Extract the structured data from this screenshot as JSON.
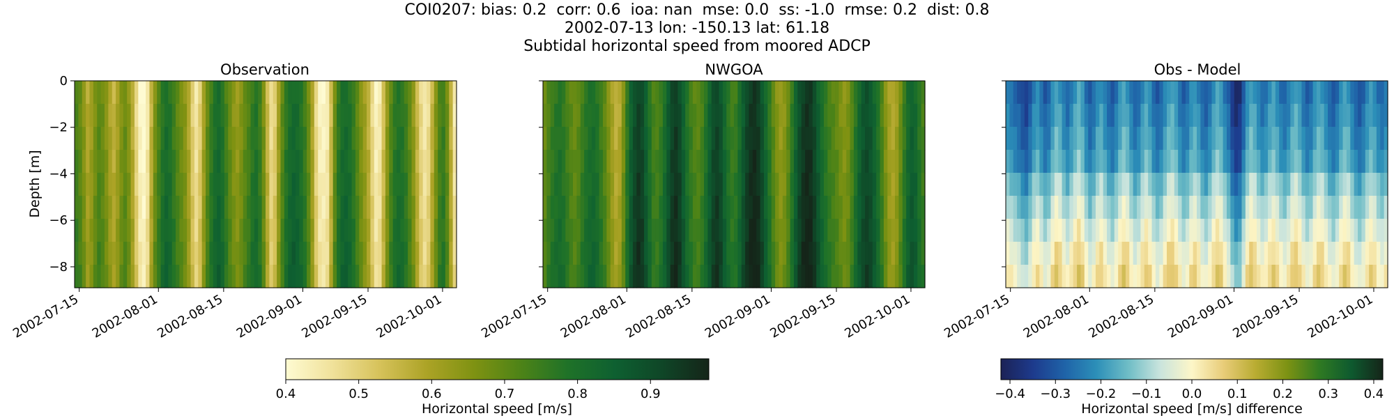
{
  "figure": {
    "title_lines": [
      "COI0207: bias: 0.2  corr: 0.6  ioa: nan  mse: 0.0  ss: -1.0  rmse: 0.2  dist: 0.8",
      "2002-07-13 lon: -150.13 lat: 61.18",
      "Subtidal horizontal speed from moored ADCP"
    ]
  },
  "chart_data": [
    {
      "type": "heatmap",
      "title": "Observation",
      "xlabel": "",
      "ylabel": "Depth [m]",
      "x_ticks": [
        "2002-07-15",
        "2002-08-01",
        "2002-08-15",
        "2002-09-01",
        "2002-09-15",
        "2002-10-01"
      ],
      "y_ticks": [
        "0",
        "−2",
        "−4",
        "−6",
        "−8"
      ],
      "xlim": [
        "2002-07-14",
        "2002-10-04"
      ],
      "ylim": [
        -8.9,
        0
      ],
      "depths": [
        -0.5,
        -1.5,
        -2.5,
        -3.5,
        -4.5,
        -5.5,
        -6.5,
        -7.5,
        -8.5
      ],
      "column_values": [
        0.74,
        0.71,
        0.66,
        0.6,
        0.63,
        0.68,
        0.72,
        0.7,
        0.66,
        0.61,
        0.58,
        0.62,
        0.67,
        0.7,
        0.66,
        0.59,
        0.5,
        0.43,
        0.41,
        0.46,
        0.58,
        0.68,
        0.74,
        0.79,
        0.82,
        0.8,
        0.76,
        0.72,
        0.69,
        0.66,
        0.6,
        0.52,
        0.47,
        0.52,
        0.62,
        0.71,
        0.77,
        0.81,
        0.83,
        0.8,
        0.75,
        0.7,
        0.66,
        0.64,
        0.67,
        0.71,
        0.74,
        0.78,
        0.8,
        0.76,
        0.68,
        0.57,
        0.49,
        0.52,
        0.63,
        0.72,
        0.78,
        0.82,
        0.84,
        0.83,
        0.8,
        0.76,
        0.7,
        0.61,
        0.5,
        0.44,
        0.43,
        0.45,
        0.56,
        0.7,
        0.78,
        0.82,
        0.83,
        0.81,
        0.77,
        0.72,
        0.67,
        0.63,
        0.58,
        0.5,
        0.44,
        0.46,
        0.55,
        0.65,
        0.73,
        0.78,
        0.8,
        0.79,
        0.76,
        0.71,
        0.65,
        0.57,
        0.5,
        0.46,
        0.49,
        0.58,
        0.67,
        0.74,
        0.76,
        0.7,
        0.58,
        0.46
      ],
      "colorbar": {
        "label": "Horizontal speed [m/s]",
        "ticks": [
          "0.4",
          "0.5",
          "0.6",
          "0.7",
          "0.8",
          "0.9"
        ],
        "range": [
          0.4,
          0.98
        ],
        "colors": [
          "#fefbd2",
          "#f0e19a",
          "#d6c25a",
          "#aca326",
          "#7f9212",
          "#4d8317",
          "#1f7228",
          "#0e6031",
          "#0f4627",
          "#152519"
        ]
      }
    },
    {
      "type": "heatmap",
      "title": "NWGOA",
      "xlabel": "",
      "ylabel": "",
      "x_ticks": [
        "2002-07-15",
        "2002-08-01",
        "2002-08-15",
        "2002-09-01",
        "2002-09-15",
        "2002-10-01"
      ],
      "xlim": [
        "2002-07-14",
        "2002-10-04"
      ],
      "ylim": [
        -8.9,
        0
      ],
      "depths": [
        -0.5,
        -1.5,
        -2.5,
        -3.5,
        -4.5,
        -5.5,
        -6.5,
        -7.5,
        -8.5
      ],
      "column_values": [
        0.7,
        0.74,
        0.77,
        0.79,
        0.8,
        0.78,
        0.75,
        0.72,
        0.7,
        0.72,
        0.76,
        0.79,
        0.81,
        0.82,
        0.8,
        0.76,
        0.72,
        0.67,
        0.62,
        0.58,
        0.6,
        0.68,
        0.78,
        0.86,
        0.91,
        0.94,
        0.92,
        0.86,
        0.8,
        0.75,
        0.74,
        0.77,
        0.82,
        0.88,
        0.93,
        0.95,
        0.92,
        0.86,
        0.8,
        0.76,
        0.73,
        0.72,
        0.75,
        0.8,
        0.86,
        0.91,
        0.93,
        0.9,
        0.84,
        0.79,
        0.76,
        0.77,
        0.82,
        0.88,
        0.93,
        0.96,
        0.97,
        0.95,
        0.9,
        0.84,
        0.78,
        0.72,
        0.67,
        0.64,
        0.66,
        0.71,
        0.78,
        0.85,
        0.91,
        0.95,
        0.97,
        0.96,
        0.92,
        0.87,
        0.82,
        0.78,
        0.75,
        0.73,
        0.71,
        0.68,
        0.66,
        0.68,
        0.73,
        0.79,
        0.85,
        0.89,
        0.91,
        0.89,
        0.85,
        0.8,
        0.74,
        0.67,
        0.62,
        0.6,
        0.63,
        0.7,
        0.77,
        0.83,
        0.86,
        0.84,
        0.79,
        0.75
      ],
      "colorbar_ref": "same as Observation"
    },
    {
      "type": "heatmap",
      "title": "Obs - Model",
      "xlabel": "",
      "ylabel": "",
      "x_ticks": [
        "2002-07-15",
        "2002-08-01",
        "2002-08-15",
        "2002-09-01",
        "2002-09-15",
        "2002-10-01"
      ],
      "xlim": [
        "2002-07-14",
        "2002-10-04"
      ],
      "ylim": [
        -8.9,
        0
      ],
      "depths": [
        -0.5,
        -1.5,
        -2.5,
        -3.5,
        -4.5,
        -5.5,
        -6.5,
        -7.5,
        -8.5
      ],
      "column_values": [
        -0.24,
        -0.26,
        -0.28,
        -0.3,
        -0.33,
        -0.35,
        -0.3,
        -0.24,
        -0.22,
        -0.26,
        -0.3,
        -0.28,
        -0.22,
        -0.18,
        -0.2,
        -0.25,
        -0.28,
        -0.24,
        -0.2,
        -0.17,
        -0.2,
        -0.26,
        -0.3,
        -0.27,
        -0.22,
        -0.2,
        -0.24,
        -0.28,
        -0.3,
        -0.26,
        -0.21,
        -0.18,
        -0.2,
        -0.25,
        -0.29,
        -0.27,
        -0.22,
        -0.19,
        -0.22,
        -0.27,
        -0.3,
        -0.28,
        -0.23,
        -0.19,
        -0.18,
        -0.21,
        -0.26,
        -0.29,
        -0.27,
        -0.22,
        -0.2,
        -0.23,
        -0.28,
        -0.3,
        -0.26,
        -0.21,
        -0.18,
        -0.2,
        -0.25,
        -0.29,
        -0.36,
        -0.4,
        -0.38,
        -0.3,
        -0.22,
        -0.18,
        -0.2,
        -0.24,
        -0.27,
        -0.25,
        -0.21,
        -0.19,
        -0.22,
        -0.26,
        -0.28,
        -0.25,
        -0.2,
        -0.18,
        -0.21,
        -0.26,
        -0.29,
        -0.27,
        -0.22,
        -0.19,
        -0.2,
        -0.24,
        -0.28,
        -0.3,
        -0.27,
        -0.22,
        -0.19,
        -0.2,
        -0.25,
        -0.29,
        -0.31,
        -0.28,
        -0.23,
        -0.2,
        -0.22,
        -0.26,
        -0.28,
        -0.25
      ],
      "depth_offsets": [
        0.0,
        0.02,
        0.04,
        0.06,
        0.12,
        0.16,
        0.2,
        0.24,
        0.27
      ],
      "colorbar": {
        "label": "Horizontal speed [m/s] difference",
        "ticks": [
          "−0.4",
          "−0.3",
          "−0.2",
          "−0.1",
          "0.0",
          "0.1",
          "0.2",
          "0.3",
          "0.4"
        ],
        "range": [
          -0.42,
          0.42
        ],
        "colors": [
          "#1c2256",
          "#1d3a8c",
          "#1f63a8",
          "#2c8fb8",
          "#6fbdc6",
          "#c9e4dd",
          "#fdf6c8",
          "#e8cc78",
          "#b9ac32",
          "#7c9213",
          "#2f7a22",
          "#0e5a2f",
          "#152519"
        ]
      }
    }
  ]
}
